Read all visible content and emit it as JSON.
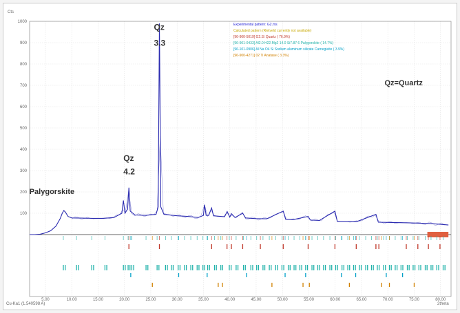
{
  "chart_data": {
    "type": "line",
    "title": "",
    "xlabel": "2theta",
    "ylabel": "Cts",
    "y_unit_label": "Cts",
    "x_unit_label": "2theta",
    "xlim": [
      2,
      82
    ],
    "ylim": [
      0,
      1000
    ],
    "radiation_label": "Cu-Ka1 (1.540598 A)",
    "x_ticks": [
      5,
      10,
      15,
      20,
      25,
      30,
      35,
      40,
      45,
      50,
      55,
      60,
      65,
      70,
      75,
      80
    ],
    "x_tick_labels": [
      "5.00",
      "10.00",
      "15.00",
      "20.00",
      "25.00",
      "30.00",
      "35.00",
      "40.00",
      "45.00",
      "50.00",
      "55.00",
      "60.00",
      "65.00",
      "70.00",
      "75.00",
      "80.00"
    ],
    "y_ticks": [
      100,
      200,
      300,
      400,
      500,
      600,
      700,
      800,
      900,
      1000
    ],
    "y_tick_labels": [
      "100",
      "200",
      "300",
      "400",
      "500",
      "600",
      "700",
      "800",
      "900",
      "1000"
    ],
    "grid": true,
    "legend_position": "top-center",
    "legend": [
      {
        "label": "Experimental pattern: G2.ms",
        "color": "#1f1fd6"
      },
      {
        "label": "Calculated pattern (Rietveld currently not available)",
        "color": "#c8a800"
      },
      {
        "label": "[96-900-5019] G2.S\\ Quartz ( 76.9%)",
        "color": "#c0392b"
      },
      {
        "label": "[96-901-0433] Al2.0 H22.Mg2 14.0 Si7.87 6 Palygorskite ( 14.7%)",
        "color": "#20b2aa"
      },
      {
        "label": "[96-101-0906] Al Na O4 Si Sodium aluminum silicate Carnegieite ( 3.9%)",
        "color": "#00a0c8"
      },
      {
        "label": "[96-900-4271] 02 Ti Anatase ( 3.3%)",
        "color": "#d08000"
      }
    ],
    "series": [
      {
        "name": "Experimental pattern: G2.ms",
        "color": "#2a2ab0",
        "points": [
          [
            2,
            0
          ],
          [
            3,
            0
          ],
          [
            4,
            2
          ],
          [
            5,
            8
          ],
          [
            6,
            18
          ],
          [
            7,
            40
          ],
          [
            7.8,
            75
          ],
          [
            8.2,
            100
          ],
          [
            8.5,
            113
          ],
          [
            8.8,
            105
          ],
          [
            9.3,
            85
          ],
          [
            10,
            78
          ],
          [
            12,
            77
          ],
          [
            14,
            76
          ],
          [
            16,
            76
          ],
          [
            18,
            80
          ],
          [
            19.5,
            100
          ],
          [
            19.8,
            160
          ],
          [
            20.1,
            100
          ],
          [
            20.6,
            120
          ],
          [
            20.85,
            220
          ],
          [
            21.1,
            110
          ],
          [
            22,
            92
          ],
          [
            24,
            90
          ],
          [
            26,
            95
          ],
          [
            26.4,
            130
          ],
          [
            26.64,
            990
          ],
          [
            26.9,
            130
          ],
          [
            27.5,
            95
          ],
          [
            30,
            88
          ],
          [
            32,
            85
          ],
          [
            34,
            80
          ],
          [
            35,
            90
          ],
          [
            35.2,
            140
          ],
          [
            35.5,
            90
          ],
          [
            36,
            90
          ],
          [
            36.55,
            125
          ],
          [
            36.9,
            88
          ],
          [
            39,
            84
          ],
          [
            39.5,
            108
          ],
          [
            40,
            82
          ],
          [
            40.3,
            98
          ],
          [
            41,
            80
          ],
          [
            42.45,
            100
          ],
          [
            43,
            78
          ],
          [
            45,
            75
          ],
          [
            47,
            74
          ],
          [
            50.14,
            110
          ],
          [
            50.6,
            72
          ],
          [
            52,
            70
          ],
          [
            54.87,
            85
          ],
          [
            55.3,
            68
          ],
          [
            57,
            66
          ],
          [
            59.96,
            110
          ],
          [
            60.4,
            62
          ],
          [
            64,
            60
          ],
          [
            67.74,
            95
          ],
          [
            68.2,
            58
          ],
          [
            70,
            57
          ],
          [
            74,
            55
          ],
          [
            78,
            52
          ],
          [
            80,
            48
          ],
          [
            81.5,
            45
          ]
        ]
      }
    ],
    "reference_patterns": [
      {
        "name": "Quartz",
        "color": "#c0392b",
        "positions": [
          20.85,
          26.64,
          36.55,
          39.47,
          40.3,
          42.45,
          45.8,
          50.14,
          54.87,
          59.96,
          64.0,
          67.74,
          68.3,
          73.5,
          75.7,
          77.7,
          79.9
        ]
      },
      {
        "name": "Palygorskite",
        "color": "#20b2aa",
        "positions": [
          8.4,
          10.9,
          13.8,
          16.3,
          19.8,
          20.7,
          21.4,
          24.1,
          26.2,
          27.8,
          28.9,
          30.2,
          31.4,
          32.6,
          33.8,
          34.9,
          35.8,
          37.1,
          38.3,
          39.9,
          41.2,
          42.6,
          44.0,
          45.1,
          46.3,
          47.5,
          48.7,
          49.9,
          51.1,
          52.2,
          53.3,
          54.4,
          55.6,
          56.7,
          57.8,
          59.0,
          60.1,
          61.3,
          62.4,
          63.5,
          64.6,
          65.8,
          66.9,
          68.0,
          69.2,
          70.3,
          71.4,
          72.5,
          73.7,
          74.8,
          75.9,
          77.1,
          78.2,
          79.3,
          80.5
        ]
      },
      {
        "name": "Carnegieite",
        "color": "#00a0c8",
        "positions": [
          21.2,
          30.3,
          35.7,
          43.2,
          50.5,
          54.4,
          61.2,
          63.9,
          69.7,
          72.8
        ]
      },
      {
        "name": "Anatase",
        "color": "#d08000",
        "positions": [
          25.3,
          37.8,
          38.6,
          48.0,
          53.9,
          55.1,
          62.7,
          68.8,
          70.3,
          75.0
        ]
      }
    ],
    "annotations": [
      {
        "text": "Qz",
        "x": 26.64,
        "y": 960
      },
      {
        "text": "3.3",
        "x": 26.64,
        "y": 885
      },
      {
        "text": "Qz",
        "x": 20.85,
        "y": 345
      },
      {
        "text": "4.2",
        "x": 20.85,
        "y": 282
      },
      {
        "text": "Palygorskite",
        "x": 8.5,
        "y": 190
      },
      {
        "text": "Qz=Quartz",
        "x": 72,
        "y": 700
      }
    ]
  }
}
